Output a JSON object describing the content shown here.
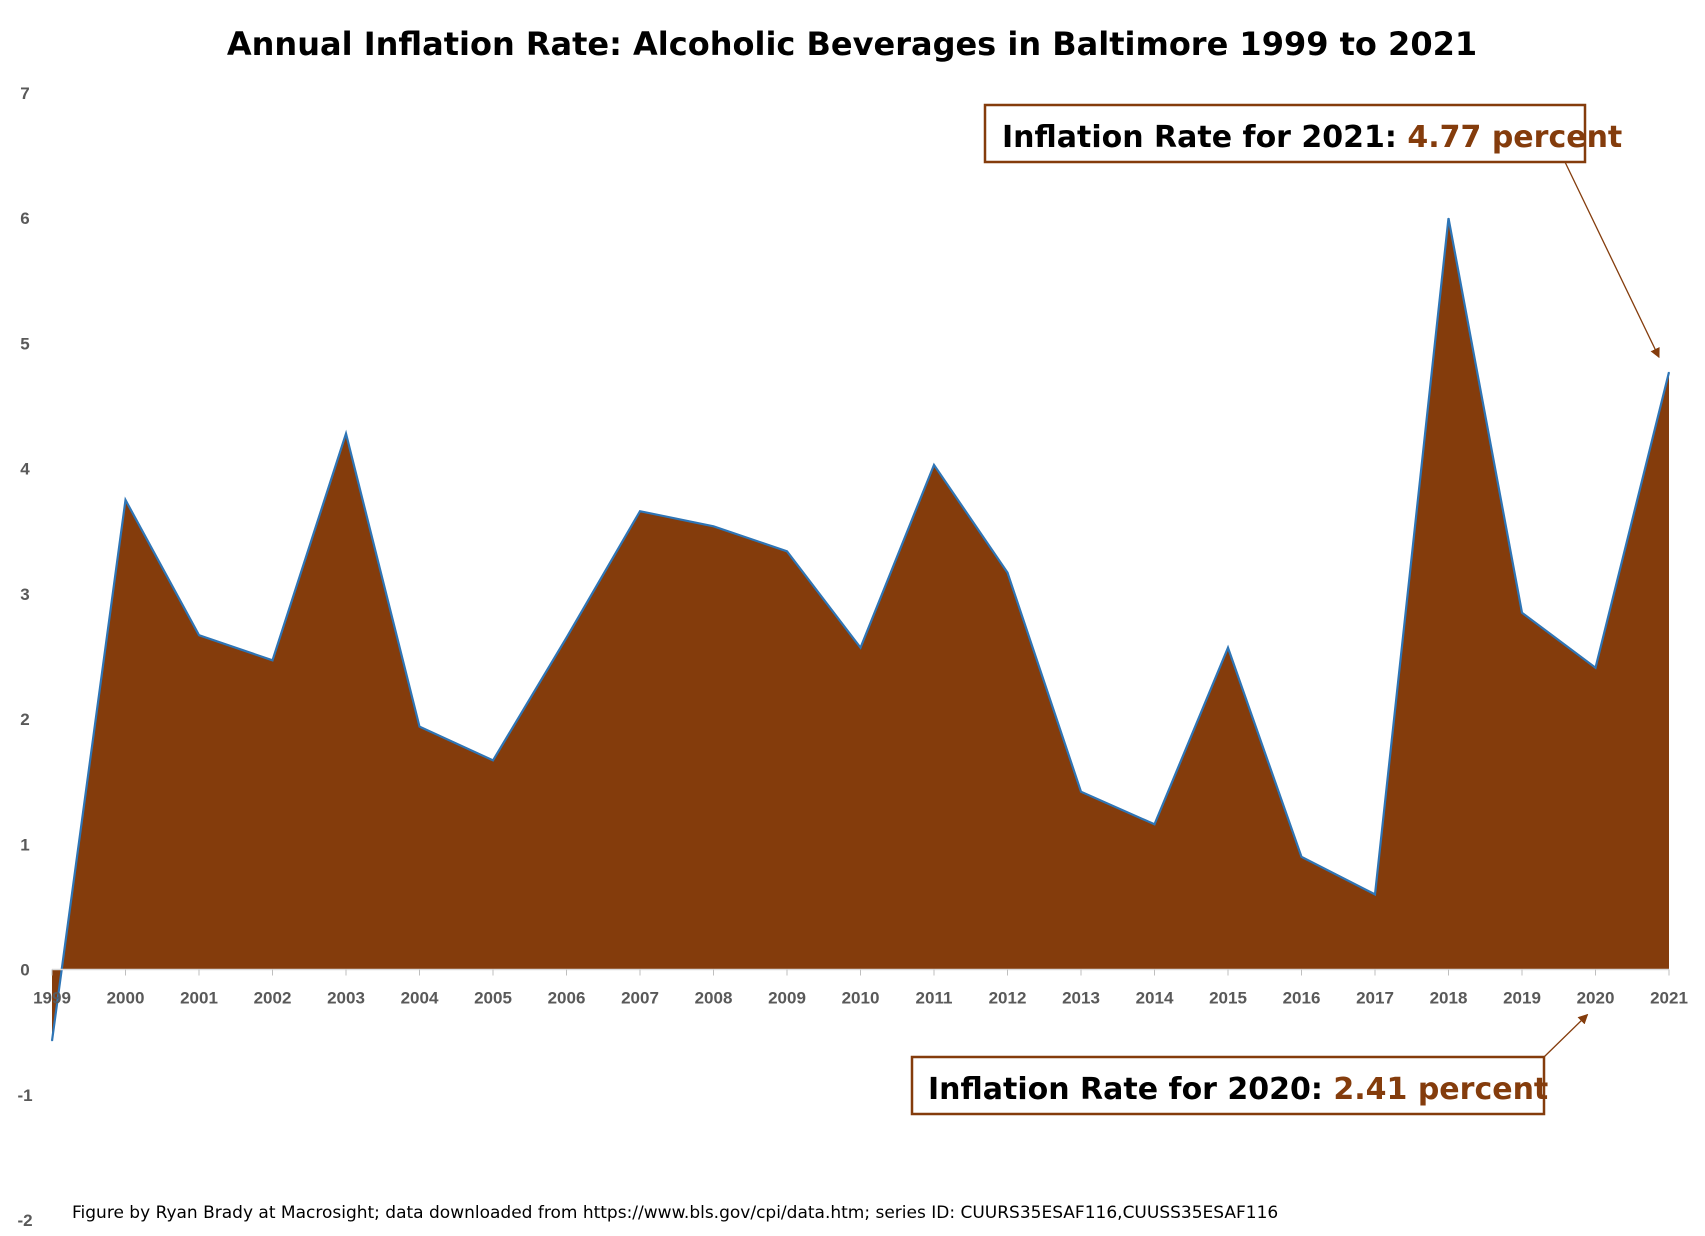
{
  "chart_data": {
    "type": "area",
    "title": "Annual Inflation Rate: Alcoholic Beverages in Baltimore 1999 to 2021",
    "xlabel": "",
    "ylabel": "",
    "x": [
      "1999",
      "2000",
      "2001",
      "2002",
      "2003",
      "2004",
      "2005",
      "2006",
      "2007",
      "2008",
      "2009",
      "2010",
      "2011",
      "2012",
      "2013",
      "2014",
      "2015",
      "2016",
      "2017",
      "2018",
      "2019",
      "2020",
      "2021"
    ],
    "series": [
      {
        "values": [
          -0.57,
          3.75,
          2.67,
          2.47,
          4.28,
          1.94,
          1.67,
          2.65,
          3.66,
          3.54,
          3.34,
          2.57,
          4.03,
          3.17,
          1.42,
          1.16,
          2.57,
          0.9,
          0.6,
          6.0,
          2.85,
          2.41,
          4.77
        ],
        "color": "#843C0C",
        "line_color": "#2E75B6"
      }
    ],
    "ylim": [
      -2,
      7
    ],
    "yticks": [
      "-2",
      "-1",
      "0",
      "1",
      "2",
      "3",
      "4",
      "5",
      "6",
      "7"
    ],
    "grid": false,
    "legend": "none",
    "annotations": [
      {
        "label": "Inflation Rate for 2021:",
        "value": "4.77 percent",
        "target_x": "2021"
      },
      {
        "label": "Inflation Rate for 2020:",
        "value": "2.41 percent",
        "target_x": "2020"
      }
    ],
    "footnote": "Figure by Ryan Brady at Macrosight; data downloaded from https://www.bls.gov/cpi/data.htm; series ID: CUURS35ESAF116,CUUSS35ESAF116",
    "colors": {
      "accent": "#843C0C",
      "text": "#000000",
      "tick": "#595959"
    }
  }
}
